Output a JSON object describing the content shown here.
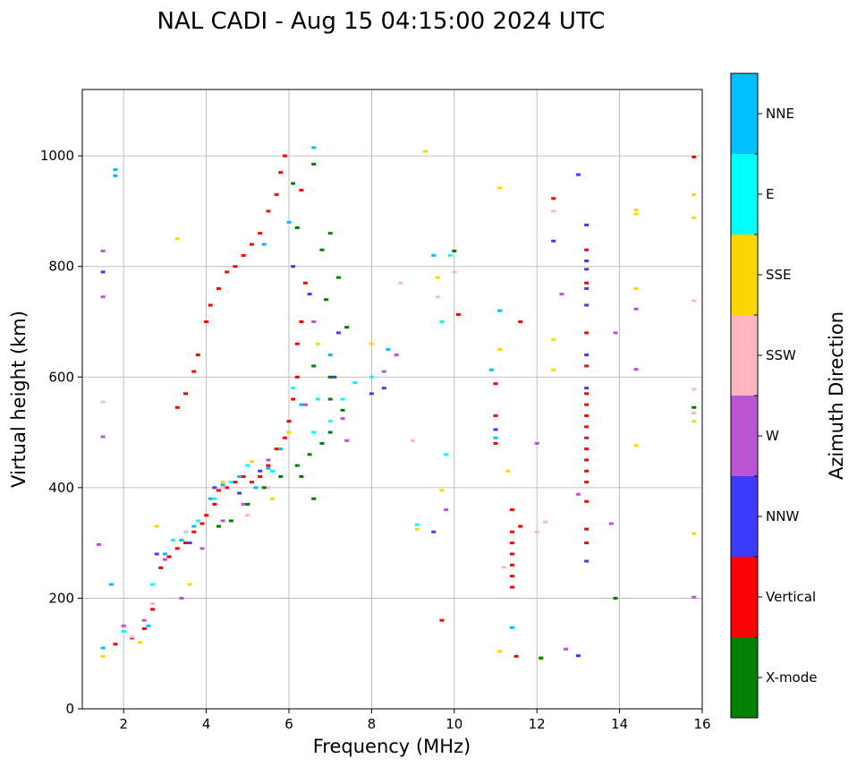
{
  "chart_data": {
    "type": "scatter",
    "title": "NAL CADI - Aug 15 04:15:00 2024 UTC",
    "xlabel": "Frequency (MHz)",
    "ylabel": "Virtual height (km)",
    "xlim": [
      1,
      16
    ],
    "ylim": [
      0,
      1120
    ],
    "xticks": [
      2,
      4,
      6,
      8,
      10,
      12,
      14,
      16
    ],
    "yticks": [
      0,
      200,
      400,
      600,
      800,
      1000
    ],
    "grid": true,
    "colorbar": {
      "title": "Azimuth Direction",
      "categories": [
        {
          "label": "NNE",
          "color": "#00bfff"
        },
        {
          "label": "E",
          "color": "#00ffff"
        },
        {
          "label": "SSE",
          "color": "#ffd700"
        },
        {
          "label": "SSW",
          "color": "#ffb6c1"
        },
        {
          "label": "W",
          "color": "#ba55d3"
        },
        {
          "label": "NNW",
          "color": "#3c3cff"
        },
        {
          "label": "Vertical",
          "color": "#ff0000"
        },
        {
          "label": "X-mode",
          "color": "#008000"
        }
      ]
    },
    "series": [
      {
        "name": "Vertical",
        "color": "#ff0000",
        "points": [
          [
            1.8,
            117
          ],
          [
            2.2,
            128
          ],
          [
            2.5,
            145
          ],
          [
            2.7,
            180
          ],
          [
            2.9,
            255
          ],
          [
            3.1,
            275
          ],
          [
            3.3,
            290
          ],
          [
            3.5,
            300
          ],
          [
            3.7,
            320
          ],
          [
            3.9,
            335
          ],
          [
            4.0,
            350
          ],
          [
            4.2,
            370
          ],
          [
            4.3,
            395
          ],
          [
            4.5,
            400
          ],
          [
            4.7,
            410
          ],
          [
            4.9,
            420
          ],
          [
            5.1,
            410
          ],
          [
            5.3,
            420
          ],
          [
            5.5,
            440
          ],
          [
            5.7,
            470
          ],
          [
            5.9,
            490
          ],
          [
            6.0,
            520
          ],
          [
            6.1,
            560
          ],
          [
            6.2,
            600
          ],
          [
            6.2,
            660
          ],
          [
            6.3,
            700
          ],
          [
            6.4,
            770
          ],
          [
            3.3,
            545
          ],
          [
            3.5,
            570
          ],
          [
            3.7,
            610
          ],
          [
            3.8,
            640
          ],
          [
            4.0,
            700
          ],
          [
            4.1,
            730
          ],
          [
            4.3,
            760
          ],
          [
            4.5,
            790
          ],
          [
            4.7,
            800
          ],
          [
            4.9,
            820
          ],
          [
            5.1,
            840
          ],
          [
            5.3,
            860
          ],
          [
            5.5,
            900
          ],
          [
            5.7,
            930
          ],
          [
            5.8,
            970
          ],
          [
            5.9,
            1000
          ],
          [
            6.3,
            938
          ],
          [
            10.1,
            713
          ],
          [
            11.0,
            588
          ],
          [
            11.0,
            530
          ],
          [
            11.0,
            480
          ],
          [
            11.4,
            360
          ],
          [
            11.4,
            320
          ],
          [
            11.4,
            300
          ],
          [
            11.4,
            280
          ],
          [
            11.4,
            260
          ],
          [
            11.4,
            240
          ],
          [
            11.4,
            220
          ],
          [
            11.5,
            95
          ],
          [
            11.6,
            330
          ],
          [
            11.6,
            700
          ],
          [
            12.4,
            923
          ],
          [
            13.2,
            830
          ],
          [
            13.2,
            770
          ],
          [
            13.2,
            680
          ],
          [
            13.2,
            620
          ],
          [
            13.2,
            570
          ],
          [
            13.2,
            550
          ],
          [
            13.2,
            530
          ],
          [
            13.2,
            510
          ],
          [
            13.2,
            490
          ],
          [
            13.2,
            470
          ],
          [
            13.2,
            450
          ],
          [
            13.2,
            430
          ],
          [
            13.2,
            410
          ],
          [
            13.2,
            375
          ],
          [
            13.2,
            325
          ],
          [
            13.2,
            300
          ],
          [
            15.8,
            998
          ],
          [
            9.7,
            160
          ]
        ]
      },
      {
        "name": "NNE",
        "color": "#00bfff",
        "points": [
          [
            1.5,
            110
          ],
          [
            1.7,
            225
          ],
          [
            1.8,
            975
          ],
          [
            1.8,
            964
          ],
          [
            2.6,
            150
          ],
          [
            3.0,
            280
          ],
          [
            3.4,
            305
          ],
          [
            3.7,
            330
          ],
          [
            4.1,
            380
          ],
          [
            4.4,
            405
          ],
          [
            4.8,
            420
          ],
          [
            5.2,
            400
          ],
          [
            5.5,
            435
          ],
          [
            5.8,
            470
          ],
          [
            6.0,
            500
          ],
          [
            6.3,
            550
          ],
          [
            6.6,
            1015
          ],
          [
            7.0,
            640
          ],
          [
            6.0,
            880
          ],
          [
            5.4,
            840
          ],
          [
            8.4,
            650
          ],
          [
            9.5,
            820
          ],
          [
            11.0,
            490
          ],
          [
            11.4,
            147
          ],
          [
            11.1,
            720
          ],
          [
            10.9,
            613
          ]
        ]
      },
      {
        "name": "E",
        "color": "#00ffff",
        "points": [
          [
            2.0,
            140
          ],
          [
            2.7,
            225
          ],
          [
            3.2,
            305
          ],
          [
            3.8,
            340
          ],
          [
            4.2,
            380
          ],
          [
            4.6,
            410
          ],
          [
            5.0,
            440
          ],
          [
            5.6,
            430
          ],
          [
            6.1,
            580
          ],
          [
            6.6,
            500
          ],
          [
            7.0,
            520
          ],
          [
            7.3,
            560
          ],
          [
            7.6,
            590
          ],
          [
            6.7,
            560
          ],
          [
            9.7,
            700
          ],
          [
            9.9,
            820
          ],
          [
            8.0,
            600
          ],
          [
            9.1,
            333
          ],
          [
            9.8,
            460
          ]
        ]
      },
      {
        "name": "SSE",
        "color": "#ffd700",
        "points": [
          [
            1.5,
            95
          ],
          [
            2.4,
            120
          ],
          [
            2.8,
            330
          ],
          [
            3.3,
            850
          ],
          [
            3.6,
            225
          ],
          [
            4.4,
            410
          ],
          [
            5.1,
            447
          ],
          [
            5.6,
            380
          ],
          [
            6.0,
            500
          ],
          [
            6.7,
            660
          ],
          [
            8.0,
            660
          ],
          [
            9.1,
            325
          ],
          [
            9.3,
            1008
          ],
          [
            9.7,
            395
          ],
          [
            11.1,
            942
          ],
          [
            11.3,
            430
          ],
          [
            11.1,
            650
          ],
          [
            11.1,
            104
          ],
          [
            12.1,
            90
          ],
          [
            12.4,
            668
          ],
          [
            12.4,
            613
          ],
          [
            14.4,
            902
          ],
          [
            14.4,
            895
          ],
          [
            14.4,
            760
          ],
          [
            14.4,
            476
          ],
          [
            15.8,
            930
          ],
          [
            15.8,
            888
          ],
          [
            15.8,
            520
          ],
          [
            15.8,
            317
          ],
          [
            9.6,
            780
          ]
        ]
      },
      {
        "name": "SSW",
        "color": "#ffb6c1",
        "points": [
          [
            1.5,
            555
          ],
          [
            2.2,
            130
          ],
          [
            2.7,
            190
          ],
          [
            3.5,
            320
          ],
          [
            4.4,
            400
          ],
          [
            5.0,
            350
          ],
          [
            5.5,
            400
          ],
          [
            8.7,
            770
          ],
          [
            9.0,
            485
          ],
          [
            9.6,
            745
          ],
          [
            10.0,
            790
          ],
          [
            11.2,
            256
          ],
          [
            12.2,
            338
          ],
          [
            12.0,
            320
          ],
          [
            12.4,
            900
          ],
          [
            15.8,
            738
          ],
          [
            15.8,
            578
          ],
          [
            15.8,
            535
          ]
        ]
      },
      {
        "name": "W",
        "color": "#ba55d3",
        "points": [
          [
            1.5,
            828
          ],
          [
            2.0,
            150
          ],
          [
            2.5,
            160
          ],
          [
            3.0,
            270
          ],
          [
            3.4,
            200
          ],
          [
            3.9,
            290
          ],
          [
            4.4,
            340
          ],
          [
            4.9,
            370
          ],
          [
            5.5,
            450
          ],
          [
            6.4,
            550
          ],
          [
            6.6,
            700
          ],
          [
            7.3,
            525
          ],
          [
            7.4,
            485
          ],
          [
            8.6,
            640
          ],
          [
            8.3,
            610
          ],
          [
            9.8,
            360
          ],
          [
            12.6,
            750
          ],
          [
            12.7,
            108
          ],
          [
            13.0,
            388
          ],
          [
            13.8,
            335
          ],
          [
            13.9,
            680
          ],
          [
            14.4,
            723
          ],
          [
            14.4,
            614
          ],
          [
            12.0,
            480
          ],
          [
            15.8,
            202
          ],
          [
            1.5,
            492
          ],
          [
            1.5,
            745
          ],
          [
            1.4,
            297
          ]
        ]
      },
      {
        "name": "NNW",
        "color": "#3c3cff",
        "points": [
          [
            1.5,
            790
          ],
          [
            2.8,
            280
          ],
          [
            3.6,
            300
          ],
          [
            4.2,
            400
          ],
          [
            4.8,
            390
          ],
          [
            5.3,
            430
          ],
          [
            6.1,
            800
          ],
          [
            6.5,
            750
          ],
          [
            7.1,
            600
          ],
          [
            7.2,
            680
          ],
          [
            8.3,
            580
          ],
          [
            8.0,
            570
          ],
          [
            9.5,
            320
          ],
          [
            11.0,
            505
          ],
          [
            12.4,
            846
          ],
          [
            13.2,
            875
          ],
          [
            13.2,
            810
          ],
          [
            13.2,
            795
          ],
          [
            13.2,
            760
          ],
          [
            13.2,
            730
          ],
          [
            13.2,
            640
          ],
          [
            13.2,
            580
          ],
          [
            13.2,
            267
          ],
          [
            13.0,
            96
          ],
          [
            13.0,
            966
          ]
        ]
      },
      {
        "name": "X-mode",
        "color": "#008000",
        "points": [
          [
            4.3,
            330
          ],
          [
            4.6,
            340
          ],
          [
            5.0,
            370
          ],
          [
            5.4,
            400
          ],
          [
            5.8,
            420
          ],
          [
            6.2,
            440
          ],
          [
            6.5,
            460
          ],
          [
            6.8,
            480
          ],
          [
            7.0,
            500
          ],
          [
            6.6,
            380
          ],
          [
            6.3,
            420
          ],
          [
            6.6,
            985
          ],
          [
            7.0,
            860
          ],
          [
            7.4,
            690
          ],
          [
            7.2,
            780
          ],
          [
            6.6,
            620
          ],
          [
            7.0,
            560
          ],
          [
            7.3,
            540
          ],
          [
            7.0,
            600
          ],
          [
            6.9,
            740
          ],
          [
            6.8,
            830
          ],
          [
            10.0,
            828
          ],
          [
            12.1,
            92
          ],
          [
            13.9,
            200
          ],
          [
            15.8,
            545
          ],
          [
            6.1,
            950
          ],
          [
            6.2,
            870
          ]
        ]
      }
    ]
  }
}
